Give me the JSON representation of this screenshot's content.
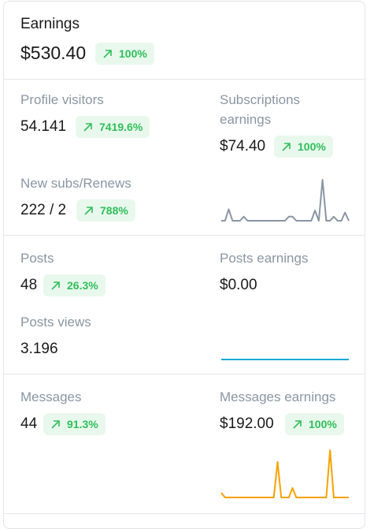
{
  "earnings": {
    "title": "Earnings",
    "amount": "$530.40",
    "change": "100%"
  },
  "profile_visitors": {
    "label": "Profile visitors",
    "value": "54.141",
    "change": "7419.6%"
  },
  "subscriptions_earnings": {
    "label_line1": "Subscriptions",
    "label_line2": "earnings",
    "value": "$74.40",
    "change": "100%"
  },
  "new_subs": {
    "label": "New subs/Renews",
    "value": "222 / 2",
    "change": "788%"
  },
  "posts": {
    "label": "Posts",
    "value": "48",
    "change": "26.3%"
  },
  "posts_earnings": {
    "label": "Posts earnings",
    "value": "$0.00"
  },
  "posts_views": {
    "label": "Posts views",
    "value": "3.196"
  },
  "messages": {
    "label": "Messages",
    "value": "44",
    "change": "91.3%"
  },
  "messages_earnings": {
    "label": "Messages earnings",
    "value": "$192.00",
    "change": "100%"
  },
  "colors": {
    "badge_bg": "#e9f8ed",
    "badge_text": "#2fbf5a",
    "label_gray": "#8a96a3",
    "subs_line": "#8a96a3",
    "posts_line": "#1aa9d6",
    "messages_line": "#f7a200"
  },
  "icons": {
    "trend": "arrow-up-right-icon"
  },
  "sparklines": {
    "subscriptions": [
      0,
      0,
      0.28,
      0,
      0,
      0,
      0.1,
      0,
      0,
      0,
      0,
      0,
      0,
      0,
      0,
      0,
      0,
      0,
      0.1,
      0.1,
      0,
      0,
      0,
      0,
      0,
      0.25,
      0,
      1,
      0,
      0,
      0.1,
      0,
      0,
      0.2,
      0
    ],
    "posts": [
      0,
      0,
      0,
      0,
      0,
      0,
      0,
      0,
      0,
      0
    ],
    "messages": [
      0.1,
      0,
      0,
      0,
      0,
      0,
      0,
      0,
      0,
      0,
      0,
      0,
      0,
      0,
      0,
      0.75,
      0,
      0,
      0,
      0.2,
      0,
      0,
      0,
      0,
      0,
      0,
      0,
      0,
      0,
      1,
      0,
      0,
      0,
      0,
      0
    ]
  }
}
